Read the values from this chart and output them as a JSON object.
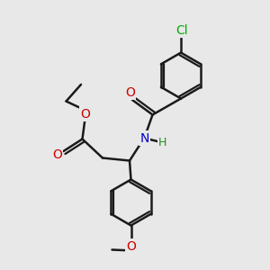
{
  "bg_color": "#e8e8e8",
  "bond_color": "#1a1a1a",
  "bond_width": 1.8,
  "atom_colors": {
    "O": "#cc0000",
    "N": "#0000cc",
    "Cl": "#00aa00",
    "H": "#228b22"
  },
  "font_size": 10
}
